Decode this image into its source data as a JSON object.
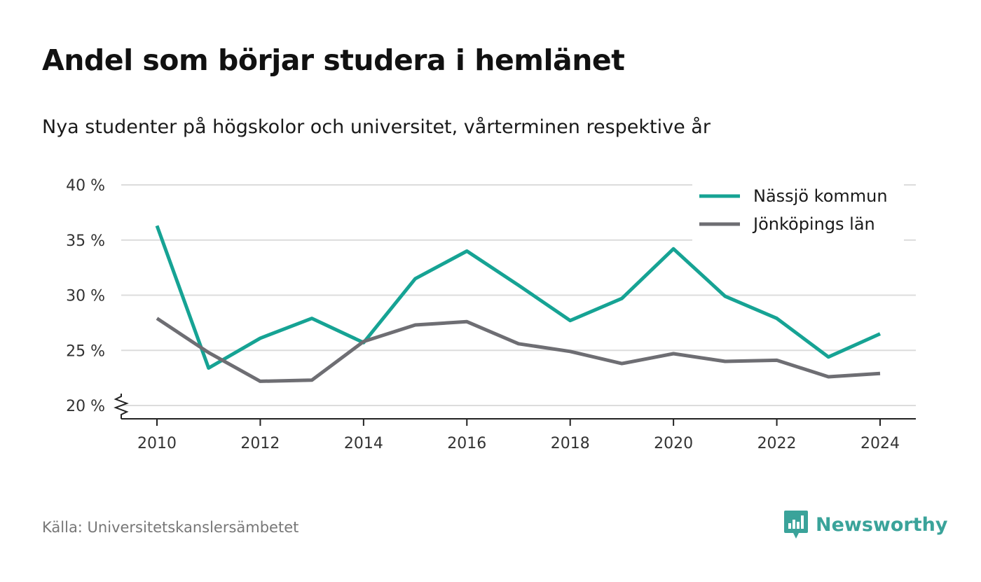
{
  "title": "Andel som börjar studera i hemlänet",
  "subtitle": "Nya studenter på högskolor och universitet, vårterminen respektive år",
  "source": "Källa: Universitetskanslersämbetet",
  "brand": {
    "name": "Newsworthy",
    "icon": "newsworthy-logo-icon",
    "color": "#3aa39a"
  },
  "chart_data": {
    "type": "line",
    "x": [
      2010,
      2011,
      2012,
      2013,
      2014,
      2015,
      2016,
      2017,
      2018,
      2019,
      2020,
      2021,
      2022,
      2023,
      2024
    ],
    "x_ticks": [
      2010,
      2012,
      2014,
      2016,
      2018,
      2020,
      2022,
      2024
    ],
    "y_ticks": [
      20,
      25,
      30,
      35,
      40
    ],
    "y_tick_suffix": " %",
    "ylim": [
      20,
      40
    ],
    "y_axis_break": true,
    "grid": true,
    "legend_position": "top-right",
    "series": [
      {
        "name": "Nässjö kommun",
        "color": "#16a394",
        "values": [
          36.3,
          23.4,
          26.1,
          27.9,
          25.7,
          31.5,
          34.0,
          30.9,
          27.7,
          29.7,
          34.2,
          29.9,
          27.9,
          24.4,
          26.5
        ]
      },
      {
        "name": "Jönköpings län",
        "color": "#6e6e73",
        "values": [
          27.9,
          24.8,
          22.2,
          22.3,
          25.8,
          27.3,
          27.6,
          25.6,
          24.9,
          23.8,
          24.7,
          24.0,
          24.1,
          22.6,
          22.9
        ]
      }
    ]
  }
}
